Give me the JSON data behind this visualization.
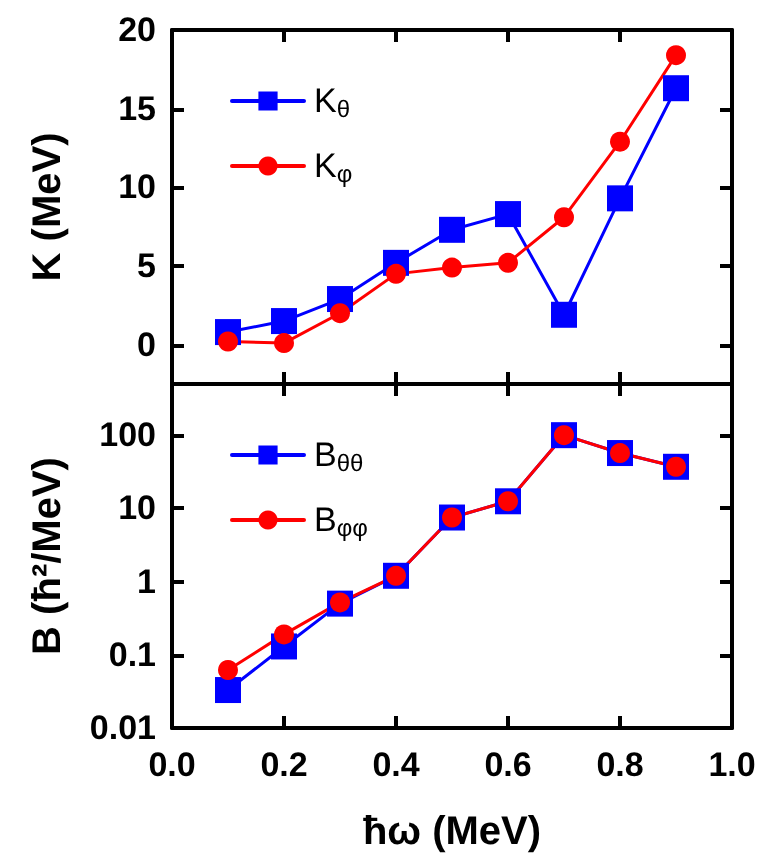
{
  "chart_data": [
    {
      "type": "line",
      "ylabel": "K (MeV)",
      "x": [
        0.1,
        0.2,
        0.3,
        0.4,
        0.5,
        0.6,
        0.7,
        0.8,
        0.9
      ],
      "series": [
        {
          "name": "K$_{θ}$",
          "color": "#0000ff",
          "marker": "square",
          "values": [
            0.8,
            1.5,
            2.9,
            5.2,
            7.3,
            8.3,
            1.9,
            9.3,
            16.3
          ]
        },
        {
          "name": "K$_{φ}$",
          "color": "#ff0000",
          "marker": "circle",
          "values": [
            0.2,
            0.1,
            2.0,
            4.5,
            4.9,
            5.2,
            8.1,
            12.9,
            18.4
          ]
        }
      ],
      "xlim": [
        0,
        1
      ],
      "xticks": [
        {
          "value": 0,
          "label": null
        },
        {
          "value": 0.2,
          "label": null
        },
        {
          "value": 0.4,
          "label": null
        },
        {
          "value": 0.6,
          "label": null
        },
        {
          "value": 0.8,
          "label": null
        },
        {
          "value": 1,
          "label": null
        }
      ],
      "ylim": [
        -2.5,
        20
      ],
      "yticks": [
        0,
        5,
        10,
        15,
        20
      ],
      "tick_labels": "y",
      "legend": "top left",
      "line_style": "solid"
    },
    {
      "type": "line",
      "xlabel": "ħω (MeV)",
      "ylabel": "B (ħ²/MeV)",
      "x": [
        0.1,
        0.2,
        0.3,
        0.4,
        0.5,
        0.6,
        0.7,
        0.8,
        0.9
      ],
      "series": [
        {
          "name": "B$_{θθ}$",
          "color": "#0000ff",
          "marker": "square",
          "values": [
            0.033,
            0.13,
            0.5,
            1.2,
            7.5,
            12.5,
            100,
            57,
            37
          ]
        },
        {
          "name": "B$_{φφ}$",
          "color": "#ff0000",
          "marker": "circle",
          "values": [
            0.062,
            0.19,
            0.52,
            1.2,
            7.5,
            12.5,
            100,
            57,
            37
          ]
        }
      ],
      "xlim": [
        0,
        1
      ],
      "xticks": [
        {
          "value": 0,
          "label": "0.0"
        },
        {
          "value": 0.2,
          "label": "0.2"
        },
        {
          "value": 0.4,
          "label": "0.4"
        },
        {
          "value": 0.6,
          "label": "0.6"
        },
        {
          "value": 0.8,
          "label": "0.8"
        },
        {
          "value": 1,
          "label": "1.0"
        }
      ],
      "ylim": [
        0.01,
        500
      ],
      "yticks": [
        0.01,
        0.1,
        1,
        10,
        100
      ],
      "log": "y",
      "legend": "top left",
      "line_style": "solid"
    }
  ]
}
